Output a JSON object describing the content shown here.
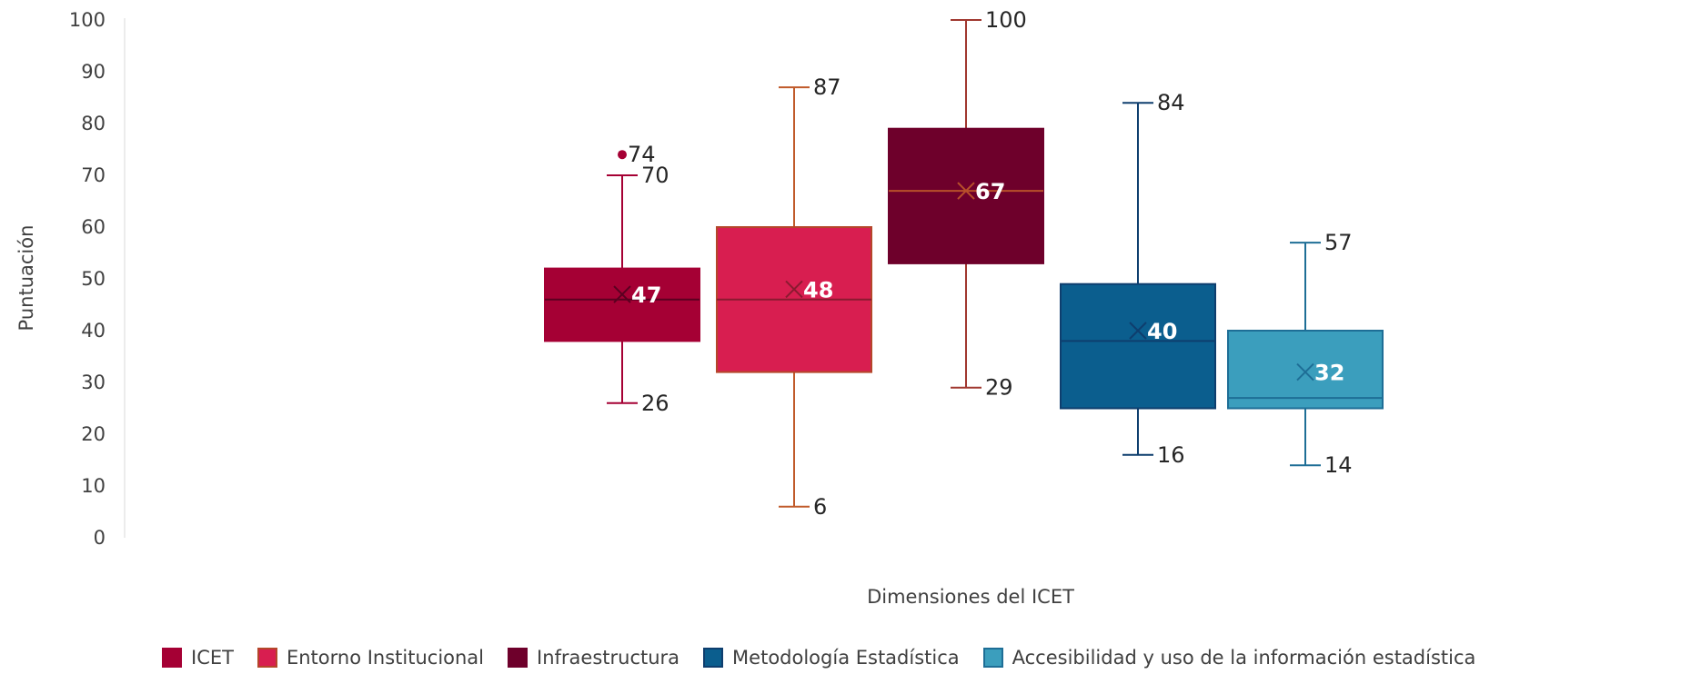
{
  "chart_data": {
    "type": "box",
    "title": "",
    "xlabel": "Dimensiones del ICET",
    "ylabel": "Puntuación",
    "ylim": [
      0,
      100
    ],
    "yticks": [
      0,
      10,
      20,
      30,
      40,
      50,
      60,
      70,
      80,
      90,
      100
    ],
    "grid": false,
    "legend_position": "bottom",
    "series": [
      {
        "name": "ICET",
        "min": 26,
        "q1": 38,
        "median": 46,
        "mean": 47,
        "q3": 52,
        "max": 70,
        "outliers": [
          74
        ],
        "color": "#a50034",
        "edge": "#a50034",
        "whisker": "#a50034",
        "mean_color": "#5a0020"
      },
      {
        "name": "Entorno Institucional",
        "min": 6,
        "q1": 32,
        "median": 46,
        "mean": 48,
        "q3": 60,
        "max": 87,
        "outliers": [],
        "color": "#d81e50",
        "edge": "#b4472a",
        "whisker": "#c05a2a",
        "mean_color": "#8a1a30"
      },
      {
        "name": "Infraestructura",
        "min": 29,
        "q1": 53,
        "median": 67,
        "mean": 67,
        "q3": 79,
        "max": 100,
        "outliers": [],
        "color": "#6e002b",
        "edge": "#6e002b",
        "whisker": "#a0372f",
        "mean_color": "#b8502a"
      },
      {
        "name": "Metodología Estadística",
        "min": 16,
        "q1": 25,
        "median": 38,
        "mean": 40,
        "q3": 49,
        "max": 84,
        "outliers": [],
        "color": "#0b5e8e",
        "edge": "#0e3e6e",
        "whisker": "#0e3e6e",
        "mean_color": "#0e3e6e"
      },
      {
        "name": "Accesibilidad y uso de la información estadística",
        "min": 14,
        "q1": 25,
        "median": 27,
        "mean": 32,
        "q3": 40,
        "max": 57,
        "outliers": [],
        "color": "#3b9ebd",
        "edge": "#1e6e96",
        "whisker": "#1e6e96",
        "mean_color": "#1e6e96"
      }
    ],
    "labels": {
      "max": [
        "70",
        "87",
        "100",
        "84",
        "57"
      ],
      "min": [
        "26",
        "6",
        "29",
        "16",
        "14"
      ],
      "mean": [
        "47",
        "48",
        "67",
        "40",
        "32"
      ],
      "outlier": [
        "74"
      ]
    }
  }
}
